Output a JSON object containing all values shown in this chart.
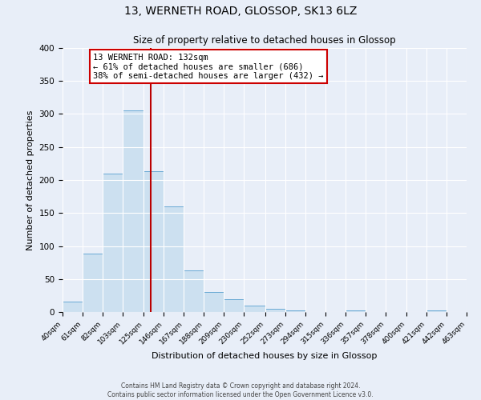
{
  "title_line1": "13, WERNETH ROAD, GLOSSOP, SK13 6LZ",
  "title_line2": "Size of property relative to detached houses in Glossop",
  "xlabel": "Distribution of detached houses by size in Glossop",
  "ylabel": "Number of detached properties",
  "bin_edges": [
    40,
    61,
    82,
    103,
    125,
    146,
    167,
    188,
    209,
    230,
    252,
    273,
    294,
    315,
    336,
    357,
    378,
    400,
    421,
    442,
    463
  ],
  "bin_heights": [
    16,
    88,
    210,
    305,
    213,
    160,
    63,
    30,
    19,
    10,
    5,
    2,
    0,
    0,
    2,
    0,
    0,
    0,
    2,
    0
  ],
  "bar_facecolor": "#cce0f0",
  "bar_edgecolor": "#6aaad4",
  "vline_x": 132,
  "vline_color": "#bb0000",
  "annotation_text": "13 WERNETH ROAD: 132sqm\n← 61% of detached houses are smaller (686)\n38% of semi-detached houses are larger (432) →",
  "annotation_box_edgecolor": "#cc0000",
  "annotation_box_facecolor": "#ffffff",
  "ylim": [
    0,
    400
  ],
  "yticks": [
    0,
    50,
    100,
    150,
    200,
    250,
    300,
    350,
    400
  ],
  "tick_labels": [
    "40sqm",
    "61sqm",
    "82sqm",
    "103sqm",
    "125sqm",
    "146sqm",
    "167sqm",
    "188sqm",
    "209sqm",
    "230sqm",
    "252sqm",
    "273sqm",
    "294sqm",
    "315sqm",
    "336sqm",
    "357sqm",
    "378sqm",
    "400sqm",
    "421sqm",
    "442sqm",
    "463sqm"
  ],
  "footer_line1": "Contains HM Land Registry data © Crown copyright and database right 2024.",
  "footer_line2": "Contains public sector information licensed under the Open Government Licence v3.0.",
  "background_color": "#e8eef8",
  "grid_color": "#ffffff",
  "title1_fontsize": 10,
  "title2_fontsize": 8.5,
  "xlabel_fontsize": 8,
  "ylabel_fontsize": 8,
  "tick_fontsize": 6.5,
  "ytick_fontsize": 7.5,
  "annotation_fontsize": 7.5,
  "footer_fontsize": 5.5
}
